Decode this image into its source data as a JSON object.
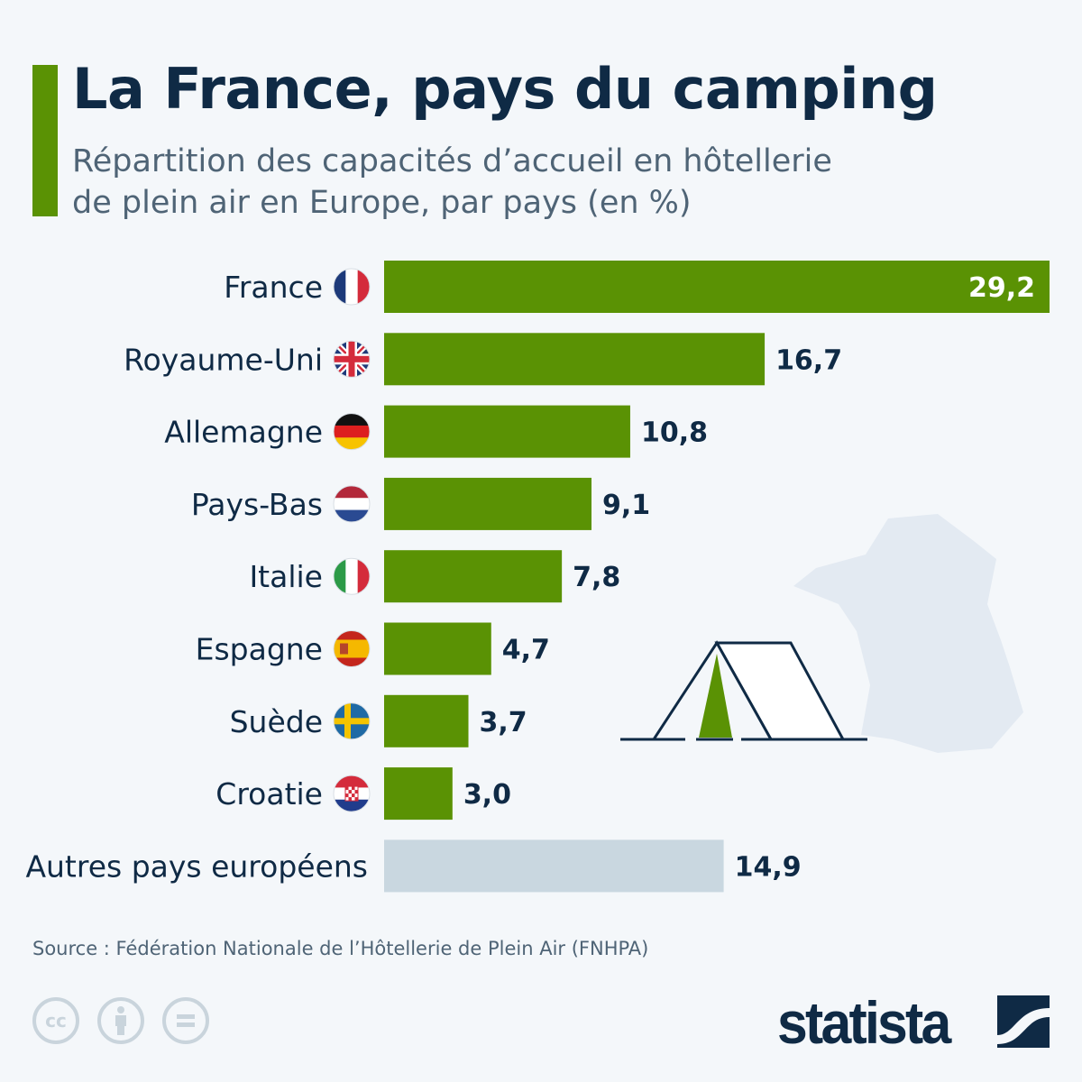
{
  "header": {
    "title": "La France, pays du camping",
    "subtitle_line1": "Répartition des capacités d’accueil en hôtellerie",
    "subtitle_line2": "de plein air en Europe, par pays (en %)"
  },
  "chart_data": {
    "type": "bar",
    "orientation": "horizontal",
    "title": "La France, pays du camping",
    "subtitle": "Répartition des capacités d’accueil en hôtellerie de plein air en Europe, par pays (en %)",
    "categories": [
      "France",
      "Royaume-Uni",
      "Allemagne",
      "Pays-Bas",
      "Italie",
      "Espagne",
      "Suède",
      "Croatie",
      "Autres pays européens"
    ],
    "values": [
      29.2,
      16.7,
      10.8,
      9.1,
      7.8,
      4.7,
      3.7,
      3.0,
      14.9
    ],
    "value_labels": [
      "29,2",
      "16,7",
      "10,8",
      "9,1",
      "7,8",
      "4,7",
      "3,7",
      "3,0",
      "14,9"
    ],
    "flags": [
      "flag-france",
      "flag-uk",
      "flag-germany",
      "flag-netherlands",
      "flag-italy",
      "flag-spain",
      "flag-sweden",
      "flag-croatia",
      null
    ],
    "xlim": [
      0,
      29.2
    ],
    "grid": false,
    "colors": {
      "bar": "#5a9204",
      "other_bar": "#c9d7e0",
      "label": "#0f2a45",
      "inside_label": "#ffffff"
    }
  },
  "footer": {
    "source": "Source : Fédération Nationale de l’Hôtellerie de Plein Air (FNHPA)",
    "license_icons": [
      "cc-icon",
      "attribution-icon",
      "no-derivatives-icon"
    ],
    "cc_text": "cc",
    "logo": "statista"
  },
  "decor": {
    "icons": [
      "france-map-icon",
      "tent-icon"
    ]
  }
}
